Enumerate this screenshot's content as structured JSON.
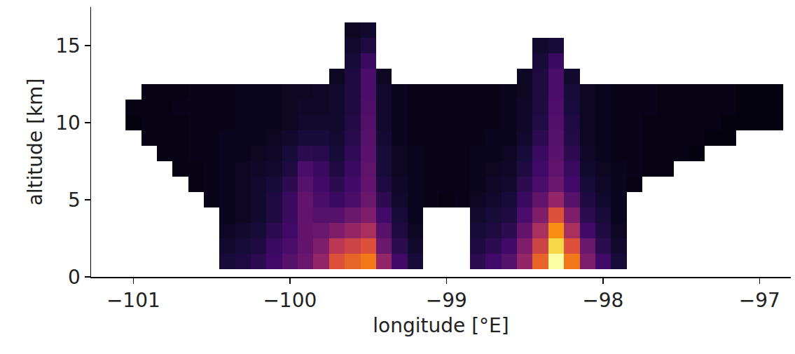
{
  "chart_data": {
    "type": "heatmap",
    "x_label": "longitude [°E]",
    "y_label": "altitude [km]",
    "color": "inferno",
    "grid": false,
    "xlim": [
      -101.27,
      -96.8
    ],
    "ylim": [
      0,
      17.5
    ],
    "xticks": [
      -101,
      -100,
      -99,
      -98,
      -97
    ],
    "yticks": [
      0,
      5,
      10,
      15
    ],
    "zlim": [
      0,
      1
    ],
    "x": [
      -101,
      -100.9,
      -100.8,
      -100.7,
      -100.6,
      -100.5,
      -100.4,
      -100.3,
      -100.2,
      -100.1,
      -100,
      -99.9,
      -99.8,
      -99.7,
      -99.6,
      -99.5,
      -99.4,
      -99.3,
      -99.2,
      -99.1,
      -99,
      -98.9,
      -98.8,
      -98.7,
      -98.6,
      -98.5,
      -98.4,
      -98.3,
      -98.2,
      -98.1,
      -98,
      -97.9,
      -97.8,
      -97.7,
      -97.6,
      -97.5,
      -97.4,
      -97.3,
      -97.2,
      -97.1,
      -97,
      -96.9
    ],
    "y": [
      1,
      2,
      3,
      4,
      5,
      6,
      7,
      8,
      9,
      10,
      11,
      12,
      13,
      14,
      15,
      16
    ],
    "z": [
      [
        null,
        null,
        null,
        null,
        null,
        null,
        0.1,
        0.12,
        0.15,
        0.2,
        0.25,
        0.3,
        0.4,
        0.6,
        0.65,
        0.7,
        0.4,
        0.2,
        0.1,
        null,
        null,
        null,
        0.15,
        0.2,
        0.25,
        0.4,
        0.65,
        1.0,
        0.7,
        0.35,
        0.2,
        0.1,
        null,
        null,
        null,
        null,
        null,
        null,
        null,
        null,
        null,
        null
      ],
      [
        null,
        null,
        null,
        null,
        null,
        null,
        0.08,
        0.1,
        0.12,
        0.18,
        0.22,
        0.28,
        0.35,
        0.5,
        0.55,
        0.6,
        0.3,
        0.15,
        0.08,
        null,
        null,
        null,
        0.12,
        0.15,
        0.2,
        0.35,
        0.55,
        0.9,
        0.6,
        0.3,
        0.15,
        0.08,
        null,
        null,
        null,
        null,
        null,
        null,
        null,
        null,
        null,
        null
      ],
      [
        null,
        null,
        null,
        null,
        null,
        null,
        0.06,
        0.08,
        0.1,
        0.15,
        0.2,
        0.28,
        0.3,
        0.35,
        0.4,
        0.45,
        0.25,
        0.12,
        0.06,
        null,
        null,
        null,
        0.1,
        0.12,
        0.15,
        0.28,
        0.45,
        0.75,
        0.45,
        0.2,
        0.12,
        0.06,
        null,
        null,
        null,
        null,
        null,
        null,
        null,
        null,
        null,
        null
      ],
      [
        null,
        null,
        null,
        null,
        null,
        null,
        0.05,
        0.06,
        0.08,
        0.12,
        0.18,
        0.28,
        0.25,
        0.25,
        0.3,
        0.35,
        0.2,
        0.1,
        0.05,
        null,
        null,
        null,
        0.08,
        0.1,
        0.12,
        0.22,
        0.35,
        0.6,
        0.35,
        0.15,
        0.1,
        0.05,
        null,
        null,
        null,
        null,
        null,
        null,
        null,
        null,
        null,
        null
      ],
      [
        null,
        null,
        null,
        null,
        null,
        0.04,
        0.05,
        0.06,
        0.08,
        0.12,
        0.18,
        0.28,
        0.22,
        0.18,
        0.22,
        0.3,
        0.15,
        0.08,
        0.05,
        0.04,
        0.03,
        0.04,
        0.06,
        0.08,
        0.1,
        0.18,
        0.28,
        0.4,
        0.25,
        0.12,
        0.08,
        0.05,
        null,
        null,
        null,
        null,
        null,
        null,
        null,
        null,
        null,
        null
      ],
      [
        null,
        null,
        null,
        null,
        0.03,
        0.04,
        0.05,
        0.06,
        0.08,
        0.1,
        0.15,
        0.25,
        0.2,
        0.15,
        0.2,
        0.28,
        0.12,
        0.07,
        0.05,
        0.04,
        0.04,
        0.04,
        0.05,
        0.07,
        0.08,
        0.15,
        0.22,
        0.3,
        0.2,
        0.1,
        0.07,
        0.05,
        0.03,
        null,
        null,
        null,
        null,
        null,
        null,
        null,
        null,
        null
      ],
      [
        null,
        null,
        null,
        0.03,
        0.03,
        0.04,
        0.05,
        0.06,
        0.07,
        0.08,
        0.12,
        0.22,
        0.18,
        0.12,
        0.18,
        0.27,
        0.1,
        0.06,
        0.05,
        0.04,
        0.04,
        0.04,
        0.05,
        0.06,
        0.07,
        0.12,
        0.2,
        0.28,
        0.18,
        0.08,
        0.06,
        0.05,
        0.04,
        0.03,
        0.03,
        null,
        null,
        null,
        null,
        null,
        null,
        null
      ],
      [
        null,
        null,
        0.03,
        0.03,
        0.04,
        0.04,
        0.05,
        0.05,
        0.06,
        0.07,
        0.1,
        0.15,
        0.14,
        0.1,
        0.16,
        0.26,
        0.1,
        0.06,
        0.05,
        0.04,
        0.04,
        0.04,
        0.05,
        0.05,
        0.06,
        0.1,
        0.18,
        0.26,
        0.15,
        0.07,
        0.05,
        0.04,
        0.04,
        0.03,
        0.03,
        0.03,
        0.02,
        null,
        null,
        null,
        null,
        null
      ],
      [
        null,
        0.03,
        0.03,
        0.03,
        0.04,
        0.04,
        0.05,
        0.05,
        0.05,
        0.06,
        0.08,
        0.1,
        0.1,
        0.09,
        0.14,
        0.25,
        0.09,
        0.05,
        0.04,
        0.04,
        0.04,
        0.04,
        0.04,
        0.05,
        0.05,
        0.08,
        0.15,
        0.25,
        0.13,
        0.06,
        0.05,
        0.04,
        0.04,
        0.03,
        0.03,
        0.03,
        0.03,
        0.02,
        0.02,
        null,
        null,
        null
      ],
      [
        0.02,
        0.03,
        0.03,
        0.03,
        0.04,
        0.04,
        0.04,
        0.05,
        0.05,
        0.05,
        0.06,
        0.08,
        0.08,
        0.08,
        0.13,
        0.24,
        0.08,
        0.05,
        0.04,
        0.04,
        0.04,
        0.04,
        0.04,
        0.04,
        0.05,
        0.07,
        0.13,
        0.24,
        0.12,
        0.06,
        0.05,
        0.04,
        0.04,
        0.03,
        0.03,
        0.03,
        0.03,
        0.03,
        0.02,
        0.02,
        0.02,
        0.02
      ],
      [
        0.03,
        0.03,
        0.03,
        0.04,
        0.04,
        0.04,
        0.04,
        0.05,
        0.05,
        0.05,
        0.06,
        0.07,
        0.07,
        0.08,
        0.12,
        0.23,
        0.08,
        0.05,
        0.04,
        0.04,
        0.04,
        0.04,
        0.04,
        0.04,
        0.05,
        0.07,
        0.12,
        0.23,
        0.11,
        0.06,
        0.05,
        0.04,
        0.04,
        0.04,
        0.03,
        0.03,
        0.03,
        0.03,
        0.03,
        0.02,
        0.02,
        0.02
      ],
      [
        null,
        0.03,
        0.03,
        0.03,
        0.04,
        0.04,
        0.04,
        0.05,
        0.05,
        0.05,
        0.06,
        0.06,
        0.07,
        0.08,
        0.12,
        0.22,
        0.08,
        0.05,
        0.04,
        0.04,
        0.04,
        0.04,
        0.04,
        0.04,
        0.05,
        0.06,
        0.12,
        0.22,
        0.1,
        0.06,
        0.05,
        0.04,
        0.04,
        0.04,
        0.03,
        0.03,
        0.03,
        0.03,
        0.03,
        0.02,
        0.02,
        0.02
      ],
      [
        null,
        null,
        null,
        null,
        null,
        null,
        null,
        null,
        null,
        null,
        null,
        null,
        null,
        0.06,
        0.12,
        0.22,
        0.06,
        null,
        null,
        null,
        null,
        null,
        null,
        null,
        null,
        0.06,
        0.12,
        0.22,
        0.08,
        null,
        null,
        null,
        null,
        null,
        null,
        null,
        null,
        null,
        null,
        null,
        null,
        null
      ],
      [
        null,
        null,
        null,
        null,
        null,
        null,
        null,
        null,
        null,
        null,
        null,
        null,
        null,
        null,
        0.1,
        0.18,
        null,
        null,
        null,
        null,
        null,
        null,
        null,
        null,
        null,
        null,
        0.1,
        0.18,
        null,
        null,
        null,
        null,
        null,
        null,
        null,
        null,
        null,
        null,
        null,
        null,
        null,
        null
      ],
      [
        null,
        null,
        null,
        null,
        null,
        null,
        null,
        null,
        null,
        null,
        null,
        null,
        null,
        null,
        0.08,
        0.12,
        null,
        null,
        null,
        null,
        null,
        null,
        null,
        null,
        null,
        null,
        0.08,
        0.1,
        null,
        null,
        null,
        null,
        null,
        null,
        null,
        null,
        null,
        null,
        null,
        null,
        null,
        null
      ],
      [
        null,
        null,
        null,
        null,
        null,
        null,
        null,
        null,
        null,
        null,
        null,
        null,
        null,
        null,
        0.06,
        0.08,
        null,
        null,
        null,
        null,
        null,
        null,
        null,
        null,
        null,
        null,
        null,
        null,
        null,
        null,
        null,
        null,
        null,
        null,
        null,
        null,
        null,
        null,
        null,
        null,
        null,
        null
      ]
    ]
  }
}
